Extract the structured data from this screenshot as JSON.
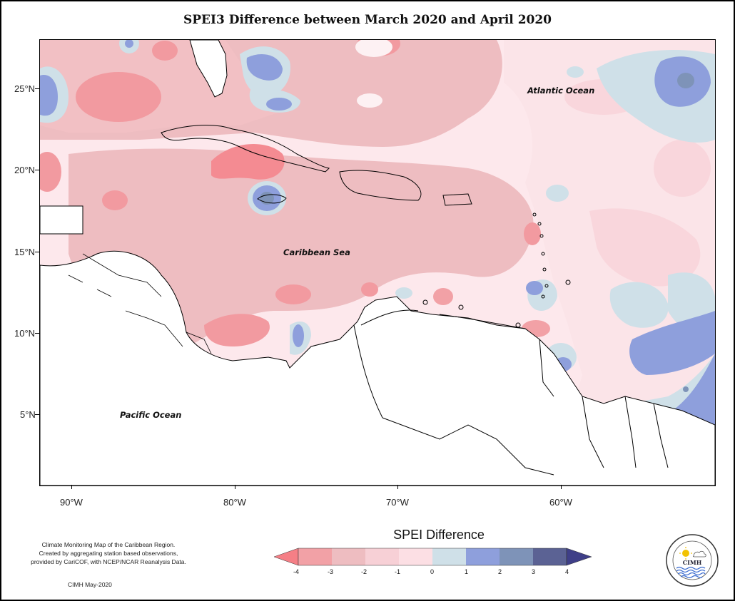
{
  "title": "SPEI3 Difference between March 2020 and April 2020",
  "latitude_labels": [
    {
      "label": "25°N",
      "lat": 25
    },
    {
      "label": "20°N",
      "lat": 20
    },
    {
      "label": "15°N",
      "lat": 15
    },
    {
      "label": "10°N",
      "lat": 10
    },
    {
      "label": "5°N",
      "lat": 5
    }
  ],
  "longitude_labels": [
    {
      "label": "90°W",
      "lon": -90
    },
    {
      "label": "80°W",
      "lon": -80
    },
    {
      "label": "70°W",
      "lon": -70
    },
    {
      "label": "60°W",
      "lon": -60
    }
  ],
  "places": {
    "atlantic": "Atlantic Ocean",
    "caribbean": "Caribbean Sea",
    "pacific": "Pacific Ocean"
  },
  "legend": {
    "title": "SPEI Difference",
    "tick_labels": [
      "-4",
      "-3",
      "-2",
      "-1",
      "0",
      "1",
      "2",
      "3",
      "4"
    ],
    "colors": [
      "#f57f86",
      "#f2a1a6",
      "#eebdc1",
      "#fcd9e0",
      "#fdeaee",
      "#cfe0e8",
      "#8e9fdc",
      "#7e93b8",
      "#5b6294",
      "#3f3f88"
    ]
  },
  "footnote": {
    "line1": "Climate Monitoring Map of the Caribbean Region.",
    "line2": "Created by aggregating station based observations,",
    "line3": "provided by CariCOF, with NCEP/NCAR Reanalysis Data."
  },
  "credit": "CIMH May-2020",
  "logo": {
    "text": "CIMH",
    "ring_text": "Caribbean Institute for Meteorology and Hydrology"
  }
}
